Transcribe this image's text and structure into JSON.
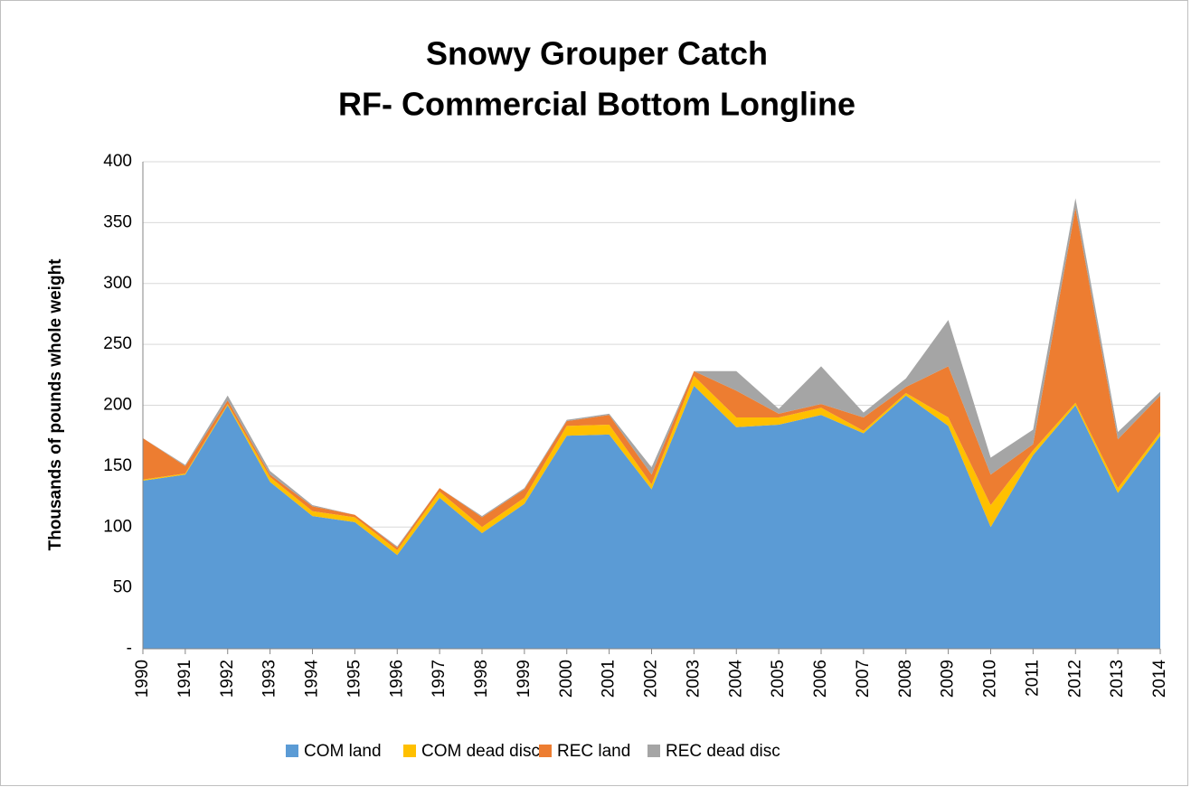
{
  "chart_data": {
    "type": "stacked_area",
    "title": "Snowy Grouper Catch",
    "subtitle": "RF- Commercial Bottom Longline",
    "y_label": "Thousands  of pounds whole weight",
    "categories": [
      "1990",
      "1991",
      "1992",
      "1993",
      "1994",
      "1995",
      "1996",
      "1997",
      "1998",
      "1999",
      "2000",
      "2001",
      "2002",
      "2003",
      "2004",
      "2005",
      "2006",
      "2007",
      "2008",
      "2009",
      "2010",
      "2011",
      "2012",
      "2013",
      "2014"
    ],
    "series": [
      {
        "name": "COM land",
        "color": "#5b9bd5",
        "values": [
          138,
          143,
          200,
          137,
          109,
          104,
          77,
          124,
          95,
          119,
          175,
          176,
          131,
          216,
          182,
          184,
          192,
          177,
          208,
          183,
          100,
          159,
          200,
          128,
          175
        ]
      },
      {
        "name": "COM dead disc",
        "color": "#ffc000",
        "values": [
          1,
          1,
          1,
          4,
          4,
          4,
          4,
          5,
          5,
          5,
          8,
          8,
          4,
          8,
          8,
          6,
          6,
          2,
          2,
          7,
          18,
          4,
          2,
          4,
          3
        ]
      },
      {
        "name": "REC land",
        "color": "#ed7d31",
        "values": [
          34,
          6,
          3,
          2,
          4,
          2,
          2,
          3,
          8,
          7,
          4,
          8,
          8,
          4,
          22,
          3,
          3,
          11,
          5,
          42,
          25,
          5,
          160,
          40,
          30
        ]
      },
      {
        "name": "REC dead disc",
        "color": "#a5a5a5",
        "values": [
          0,
          1,
          4,
          3,
          1,
          0,
          1,
          0,
          1,
          1,
          1,
          1,
          6,
          0,
          16,
          4,
          31,
          4,
          7,
          38,
          14,
          12,
          8,
          6,
          3
        ]
      }
    ],
    "ylim": [
      0,
      400
    ],
    "yticks": [
      {
        "value": 0,
        "label": "-"
      },
      50,
      100,
      150,
      200,
      250,
      300,
      350,
      400
    ],
    "grid": true,
    "legend": "bottom"
  }
}
